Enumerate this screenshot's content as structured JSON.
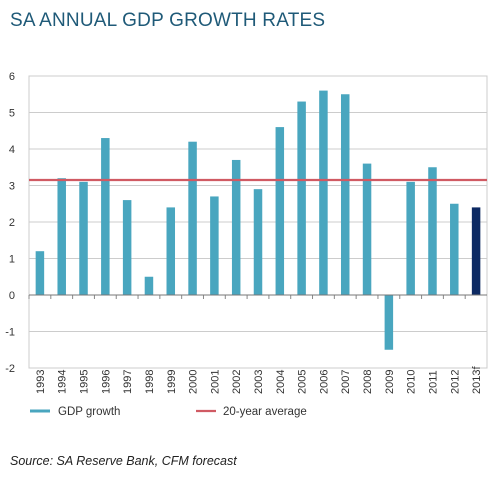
{
  "title": "SA ANNUAL GDP GROWTH RATES",
  "source": "Source: SA Reserve Bank, CFM forecast",
  "colors": {
    "bar": "#49a6bf",
    "forecast_bar": "#0d2a63",
    "average_line": "#d05a63",
    "grid": "#cccccc",
    "title": "#1f5a78"
  },
  "chart_data": {
    "type": "bar",
    "categories": [
      "1993",
      "1994",
      "1995",
      "1996",
      "1997",
      "1998",
      "1999",
      "2000",
      "2001",
      "2002",
      "2003",
      "2004",
      "2005",
      "2006",
      "2007",
      "2008",
      "2009",
      "2010",
      "2011",
      "2012",
      "2013f"
    ],
    "series": [
      {
        "name": "GDP growth",
        "values": [
          1.2,
          3.2,
          3.1,
          4.3,
          2.6,
          0.5,
          2.4,
          4.2,
          2.7,
          3.7,
          2.9,
          4.6,
          5.3,
          5.6,
          5.5,
          3.6,
          -1.5,
          3.1,
          3.5,
          2.5,
          2.4
        ]
      },
      {
        "name": "20-year average",
        "type": "line",
        "value": 3.15
      }
    ],
    "forecast_category": "2013f",
    "ylim": [
      -2,
      6
    ],
    "yticks": [
      -2,
      -1,
      0,
      1,
      2,
      3,
      4,
      5,
      6
    ],
    "grid": true,
    "legend": "bottom-left"
  }
}
